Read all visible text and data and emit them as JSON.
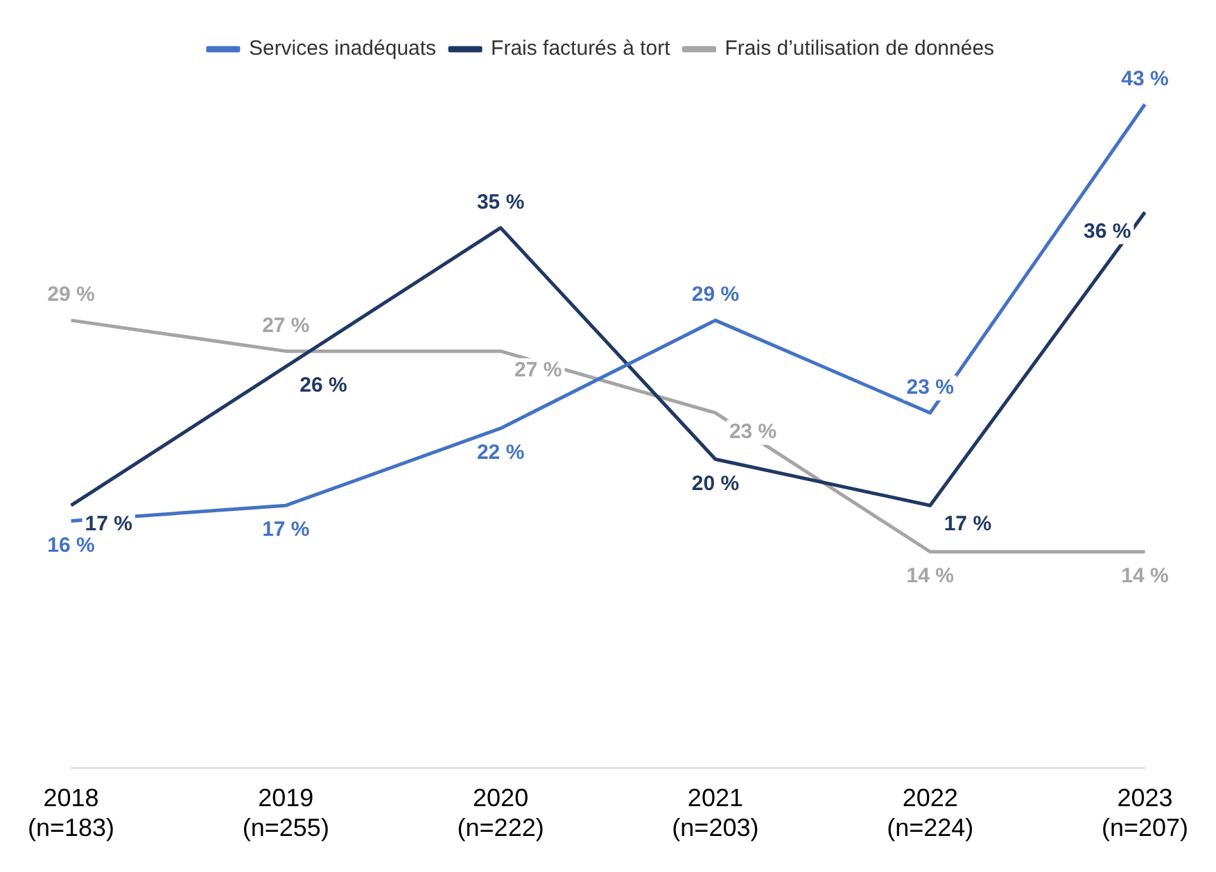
{
  "chart_data": {
    "type": "line",
    "categories": [
      "2018\n(n=183)",
      "2019\n(n=255)",
      "2020\n(n=222)",
      "2021\n(n=203)",
      "2022\n(n=224)",
      "2023\n(n=207)"
    ],
    "series": [
      {
        "name": "Services inadéquats",
        "color": "#4472c4",
        "values": [
          16,
          17,
          22,
          29,
          23,
          43
        ],
        "value_labels": [
          "16 %",
          "17 %",
          "22 %",
          "29 %",
          "23 %",
          "43 %"
        ]
      },
      {
        "name": "Frais facturés à tort",
        "color": "#203864",
        "values": [
          17,
          26,
          35,
          20,
          17,
          36
        ],
        "value_labels": [
          "17 %",
          "26 %",
          "35 %",
          "20 %",
          "17 %",
          "36 %"
        ]
      },
      {
        "name": "Frais d’utilisation de données",
        "color": "#a5a5a5",
        "values": [
          29,
          27,
          27,
          23,
          14,
          14
        ],
        "value_labels": [
          "29 %",
          "27 %",
          "27 %",
          "23 %",
          "14 %",
          "14 %"
        ]
      }
    ],
    "legend": "top",
    "grid": false,
    "marker": "none",
    "line_style": "solid"
  }
}
